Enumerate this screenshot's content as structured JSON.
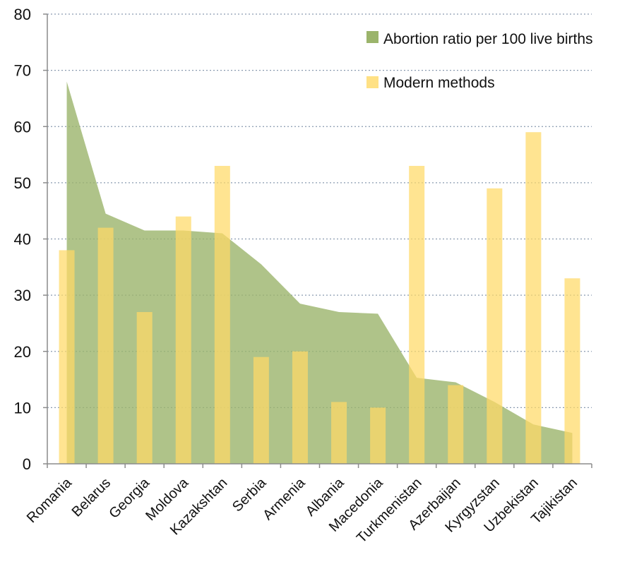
{
  "chart_data": {
    "type": "area",
    "categories": [
      "Romania",
      "Belarus",
      "Georgia",
      "Moldova",
      "Kazakshtan",
      "Serbia",
      "Armenia",
      "Albania",
      "Macedonia",
      "Turkmenistan",
      "Azerbaijan",
      "Kyrgyzstan",
      "Uzbekistan",
      "Tajikistan"
    ],
    "series": [
      {
        "name": "Abortion ratio per 100 live births",
        "kind": "area",
        "color": "#9bb46b",
        "values": [
          68,
          44.5,
          41.5,
          41.5,
          41,
          35.5,
          28.5,
          27,
          26.7,
          15.3,
          14.5,
          11,
          7,
          5.5
        ]
      },
      {
        "name": "Modern methods",
        "kind": "bar",
        "color": "#ffd966",
        "values": [
          38,
          42,
          27,
          44,
          53,
          19,
          20,
          11,
          10,
          53,
          14,
          49,
          59,
          33
        ]
      }
    ],
    "yticks": [
      0,
      10,
      20,
      30,
      40,
      50,
      60,
      70,
      80
    ],
    "ylim": [
      0,
      80
    ],
    "grid": true,
    "legend_position": "top-right",
    "title": "",
    "xlabel": "",
    "ylabel": ""
  }
}
